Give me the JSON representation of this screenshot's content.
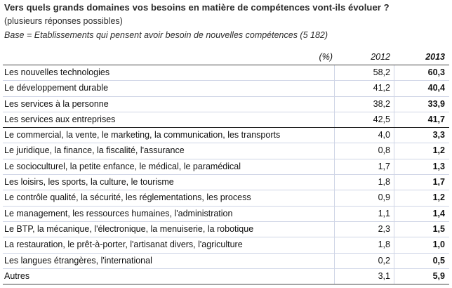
{
  "title": "Vers quels grands domaines vos besoins en matière de compétences vont-ils évoluer ?",
  "subtitle": "(plusieurs réponses possibles)",
  "base": "Base = Etablissements qui pensent avoir besoin de nouvelles compétences (5 182)",
  "header": {
    "unit": "(%)",
    "y2012": "2012",
    "y2013": "2013"
  },
  "rows": [
    {
      "label": "Les nouvelles technologies",
      "v2012": "58,2",
      "v2013": "60,3"
    },
    {
      "label": "Le développement durable",
      "v2012": "41,2",
      "v2013": "40,4"
    },
    {
      "label": "Les services à la personne",
      "v2012": "38,2",
      "v2013": "33,9"
    },
    {
      "label": "Les services aux entreprises",
      "v2012": "42,5",
      "v2013": "41,7"
    },
    {
      "label": "Le commercial, la vente, le marketing, la communication, les transports",
      "v2012": "4,0",
      "v2013": "3,3"
    },
    {
      "label": "Le juridique, la finance, la fiscalité, l'assurance",
      "v2012": "0,8",
      "v2013": "1,2"
    },
    {
      "label": "Le socioculturel, la petite enfance, le médical, le paramédical",
      "v2012": "1,7",
      "v2013": "1,3"
    },
    {
      "label": "Les loisirs, les sports, la culture, le tourisme",
      "v2012": "1,8",
      "v2013": "1,7"
    },
    {
      "label": "Le contrôle qualité, la sécurité, les réglementations, les process",
      "v2012": "0,9",
      "v2013": "1,2"
    },
    {
      "label": "Le management, les ressources humaines, l'administration",
      "v2012": "1,1",
      "v2013": "1,4"
    },
    {
      "label": "Le BTP, la mécanique, l'électronique, la menuiserie, la robotique",
      "v2012": "2,3",
      "v2013": "1,5"
    },
    {
      "label": "La restauration, le prêt-à-porter, l'artisanat divers, l'agriculture",
      "v2012": "1,8",
      "v2013": "1,0"
    },
    {
      "label": "Les langues étrangères, l'international",
      "v2012": "0,2",
      "v2013": "0,5"
    },
    {
      "label": "Autres",
      "v2012": "3,1",
      "v2013": "5,9"
    }
  ]
}
